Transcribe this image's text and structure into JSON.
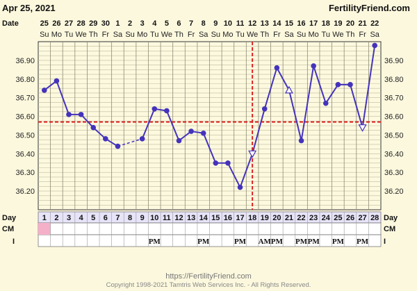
{
  "header": {
    "date": "Apr 25, 2021",
    "site": "FertilityFriend.com",
    "date_row_label": "Date"
  },
  "chart_data": {
    "type": "line",
    "title": "",
    "dates": [
      "25",
      "26",
      "27",
      "28",
      "29",
      "30",
      "1",
      "2",
      "3",
      "4",
      "5",
      "6",
      "7",
      "8",
      "9",
      "10",
      "11",
      "12",
      "13",
      "14",
      "15",
      "16",
      "17",
      "18",
      "19",
      "20",
      "21",
      "22"
    ],
    "weekdays": [
      "Su",
      "Mo",
      "Tu",
      "We",
      "Th",
      "Fr",
      "Sa",
      "Su",
      "Mo",
      "Tu",
      "We",
      "Th",
      "Fr",
      "Sa",
      "Su",
      "Mo",
      "Tu",
      "We",
      "Th",
      "Fr",
      "Sa",
      "Su",
      "Mo",
      "Tu",
      "We",
      "Th",
      "Fr",
      "Sa"
    ],
    "days": [
      "1",
      "2",
      "3",
      "4",
      "5",
      "6",
      "7",
      "8",
      "9",
      "10",
      "11",
      "12",
      "13",
      "14",
      "15",
      "16",
      "17",
      "18",
      "19",
      "20",
      "21",
      "22",
      "23",
      "24",
      "25",
      "26",
      "27",
      "28"
    ],
    "yticks": [
      "36.90",
      "36.80",
      "36.70",
      "36.60",
      "36.50",
      "36.40",
      "36.30",
      "36.20"
    ],
    "ylim": [
      36.1,
      37.0
    ],
    "series": [
      {
        "values": [
          36.74,
          36.79,
          36.61,
          36.61,
          36.54,
          36.48,
          36.44,
          null,
          36.48,
          36.64,
          36.63,
          36.47,
          36.52,
          36.51,
          36.35,
          36.35,
          36.22,
          36.4,
          36.64,
          36.86,
          36.74,
          36.47,
          36.87,
          36.67,
          36.77,
          36.77,
          36.54,
          36.98
        ],
        "open_markers": [
          21,
          18,
          27
        ],
        "dashed_segments": [
          [
            7,
            9
          ]
        ]
      }
    ],
    "coverline": 36.57,
    "ovulation_day": 18,
    "colors": {
      "line": "#4433bb",
      "coverline": "#dd2222",
      "ovulation": "#dd2222",
      "cm_fill": "#f4b0c8"
    },
    "rows": {
      "day_label": "Day",
      "cm_label": "CM",
      "i_label": "I",
      "cm_marked_days": [
        1
      ],
      "i_marks": [
        {
          "day": 10,
          "text": "PM"
        },
        {
          "day": 14,
          "text": "PM"
        },
        {
          "day": 17,
          "text": "PM"
        },
        {
          "day": 19,
          "text": "AM"
        },
        {
          "day": 20,
          "text": "PM"
        },
        {
          "day": 22,
          "text": "PM"
        },
        {
          "day": 23,
          "text": "PM"
        },
        {
          "day": 25,
          "text": "PM"
        },
        {
          "day": 27,
          "text": "PM"
        }
      ]
    }
  },
  "footer": {
    "url": "https://FertilityFriend.com",
    "copyright": "Copyright 1998-2021 Tamtris Web Services Inc. - All Rights Reserved."
  }
}
